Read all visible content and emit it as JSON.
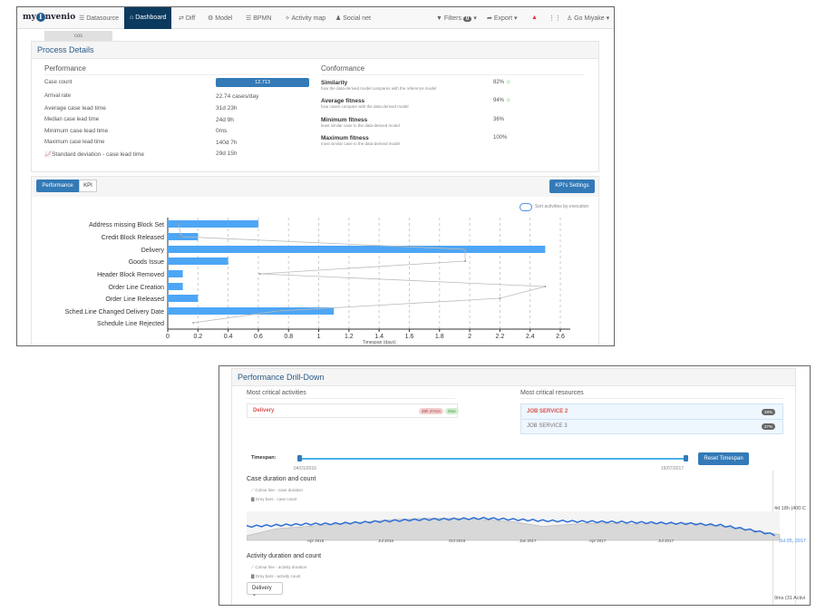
{
  "nav": {
    "logo": "myInvenio",
    "items": [
      "Datasource",
      "Dashboard",
      "Diff",
      "Model",
      "BPMN",
      "Activity map",
      "Social net"
    ],
    "filters": "Filters",
    "filters_count": "0",
    "export": "Export",
    "user": "Go Miyake",
    "tab": "cos"
  },
  "process": {
    "title": "Process Details",
    "performance": {
      "title": "Performance",
      "rows": [
        {
          "label": "Case count",
          "value": "12,713"
        },
        {
          "label": "Arrival rate",
          "value": "22.74 cases/day"
        },
        {
          "label": "Average case lead time",
          "value": "31d 23h"
        },
        {
          "label": "Median case lead time",
          "value": "24d 9h"
        },
        {
          "label": "Minimum case lead time",
          "value": "0ms"
        },
        {
          "label": "Maximum case lead time",
          "value": "140d 7h"
        },
        {
          "label": "Standard deviation - case lead time",
          "value": "29d 15h"
        }
      ]
    },
    "conformance": {
      "title": "Conformance",
      "rows": [
        {
          "label": "Similarity",
          "desc": "how the data-derived model compares with the reference model",
          "value": "82%"
        },
        {
          "label": "Average fitness",
          "desc": "how cases compare with the data-derived model",
          "value": "94%"
        },
        {
          "label": "Minimum fitness",
          "desc": "least similar case to the data-derived model",
          "value": "36%"
        },
        {
          "label": "Maximum fitness",
          "desc": "most similar case to the data-derived model",
          "value": "100%"
        }
      ]
    }
  },
  "kpi": {
    "tabs": [
      "Performance",
      "KPI"
    ],
    "settings": "KPI's Settings",
    "sort_toggle": "Sort activities by execution"
  },
  "chart_data": {
    "type": "bar",
    "orientation": "horizontal",
    "xlabel": "Timespan (days)",
    "xlim": [
      0,
      2.6
    ],
    "ticks": [
      "0",
      "0.2",
      "0.4",
      "0.6",
      "0.8",
      "1",
      "1.2",
      "1.4",
      "1.6",
      "1.8",
      "2",
      "2.2",
      "2.4",
      "2.6"
    ],
    "categories": [
      "Address missing Block Set",
      "Credit Block Released",
      "Delivery",
      "Goods Issue",
      "Header Block Removed",
      "Order Line Creation",
      "Order Line Released",
      "Sched.Line Changed Delivery Date",
      "Schedule Line Rejected"
    ],
    "values": [
      0.6,
      0.2,
      2.5,
      0.4,
      0.1,
      0.1,
      0.2,
      1.1,
      0
    ],
    "line_values": [
      0.07,
      0.09,
      1.97,
      1.97,
      0.61,
      2.5,
      2.2,
      0.73,
      0.17
    ],
    "bar_color": "#4da6f5",
    "grid": true
  },
  "drill": {
    "title": "Performance Drill-Down",
    "activities_title": "Most critical activities",
    "activity": {
      "name": "Delivery",
      "badge1": "39h 37min",
      "badge2": "0ms"
    },
    "resources_title": "Most critical resources",
    "resources": [
      {
        "name": "JOB SERVICE 2",
        "pct": "28%"
      },
      {
        "name": "JOB SERVICE 3",
        "pct": "27%"
      }
    ],
    "timespan_label": "Timespan:",
    "start": "04/01/2016",
    "end": "16/07/2017",
    "reset": "Reset Timespan",
    "case_title": "Case duration and count",
    "case_legend1": "Colour line - case duration",
    "case_legend2": "Grey bars - case count",
    "case_axis": [
      "Apr 2016",
      "Jul 2016",
      "Oct 2016",
      "Jan 2017",
      "Apr 2017",
      "Jul 2017"
    ],
    "case_top": "4d 18h (400 C",
    "case_cursor": "Jul 05, 2017",
    "case_line": [
      0.6,
      0.65,
      0.7,
      0.72,
      0.78,
      0.85,
      0.9,
      0.92,
      0.95,
      0.9,
      0.85,
      0.82,
      0.8,
      0.78,
      0.75,
      0.72,
      0.65,
      0.45,
      0.2
    ],
    "case_area": [
      0.2,
      0.5,
      0.6,
      0.7,
      0.8,
      0.9,
      0.95,
      0.95,
      0.9,
      0.8,
      0.6,
      0.7,
      0.75,
      0.7,
      0.72,
      0.75,
      0.6,
      0.45,
      0.25
    ],
    "act_title": "Activity duration and count",
    "act_legend1": "Colour line - activity duration",
    "act_legend2": "Grey bars - activity count",
    "act_select": "Delivery",
    "act_bottom": "0ms (31 Activi"
  }
}
